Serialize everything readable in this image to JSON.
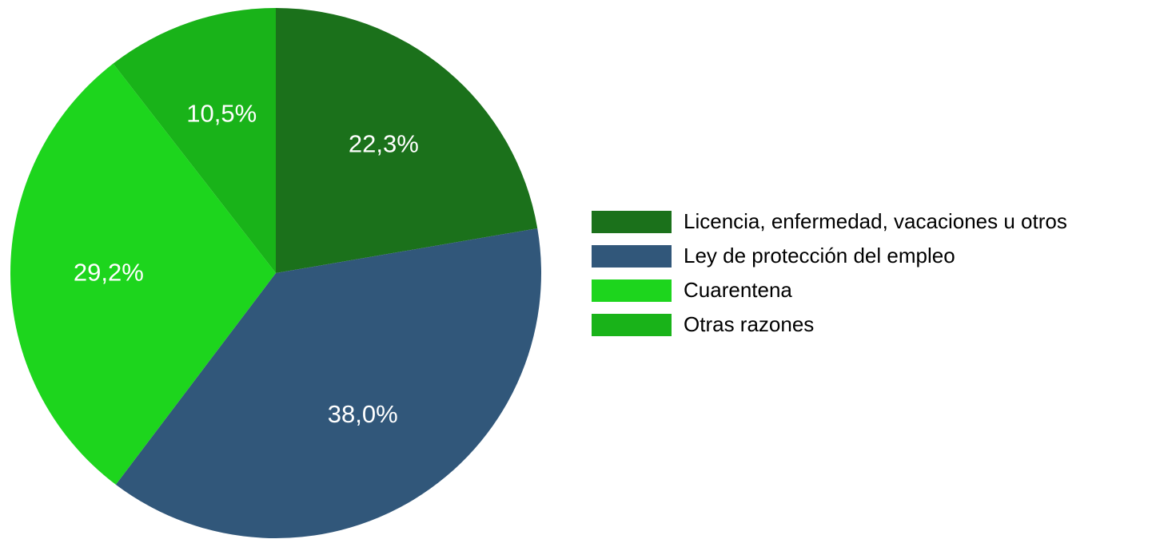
{
  "chart_data": {
    "type": "pie",
    "categories": [
      "Licencia, enfermedad, vacaciones u otros",
      "Ley de protección del empleo",
      "Cuarentena",
      "Otras razones"
    ],
    "values": [
      22.3,
      38.0,
      29.2,
      10.5
    ],
    "value_labels": [
      "22,3%",
      "38,0%",
      "29,2%",
      "10,5%"
    ],
    "colors": [
      "#1b711b",
      "#31577a",
      "#1dd51d",
      "#19b319"
    ],
    "legend": "right"
  }
}
